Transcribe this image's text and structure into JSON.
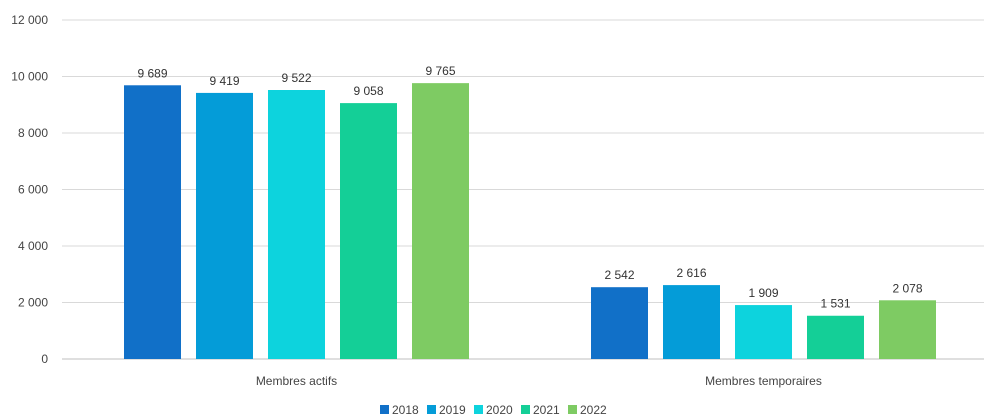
{
  "chart_data": {
    "type": "bar",
    "title": "",
    "xlabel": "",
    "ylabel": "",
    "categories": [
      "Membres actifs",
      "Membres temporaires"
    ],
    "series": [
      {
        "name": "2018",
        "color": "#1170c8",
        "values": [
          9689,
          2542
        ],
        "labels": [
          "9 689",
          "2 542"
        ]
      },
      {
        "name": "2019",
        "color": "#049cd8",
        "values": [
          9419,
          2616
        ],
        "labels": [
          "9 419",
          "2 616"
        ]
      },
      {
        "name": "2020",
        "color": "#0dd3dd",
        "values": [
          9522,
          1909
        ],
        "labels": [
          "9 522",
          "1 909"
        ]
      },
      {
        "name": "2021",
        "color": "#14cf97",
        "values": [
          9058,
          1531
        ],
        "labels": [
          "9 058",
          "1 531"
        ]
      },
      {
        "name": "2022",
        "color": "#7ecb63",
        "values": [
          9765,
          2078
        ],
        "labels": [
          "9 765",
          "2 078"
        ]
      }
    ],
    "ylim": [
      0,
      12000
    ],
    "yticks": [
      0,
      2000,
      4000,
      6000,
      8000,
      10000,
      12000
    ],
    "ytick_labels": [
      "0",
      "2 000",
      "4 000",
      "6 000",
      "8 000",
      "10 000",
      "12 000"
    ],
    "grid": true,
    "legend": "bottom"
  }
}
